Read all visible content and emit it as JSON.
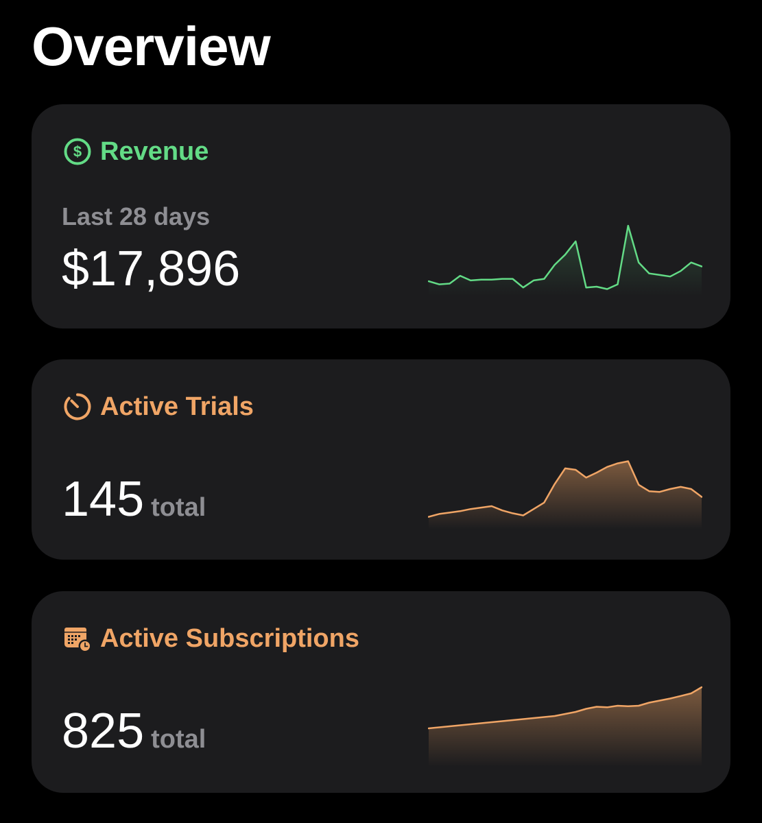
{
  "page": {
    "title": "Overview"
  },
  "cards": {
    "revenue": {
      "title": "Revenue",
      "icon": "dollar-circle-icon",
      "accent": "#63db86",
      "period_label": "Last 28 days",
      "value": "$17,896",
      "sparkline": [
        21,
        17,
        18,
        28,
        22,
        23,
        23,
        24,
        24,
        13,
        22,
        24,
        42,
        55,
        72,
        13,
        14,
        11,
        17,
        92,
        45,
        31,
        29,
        27,
        34,
        45,
        40
      ]
    },
    "active_trials": {
      "title": "Active Trials",
      "icon": "stopwatch-icon",
      "accent": "#f0a566",
      "value": "145",
      "value_unit": "total",
      "sparkline": [
        10,
        14,
        16,
        18,
        21,
        23,
        25,
        19,
        15,
        12,
        21,
        30,
        56,
        78,
        76,
        65,
        72,
        80,
        85,
        88,
        55,
        46,
        45,
        49,
        52,
        49,
        38
      ]
    },
    "active_subscriptions": {
      "title": "Active Subscriptions",
      "icon": "calendar-clock-icon",
      "accent": "#f0a566",
      "value": "825",
      "value_unit": "total",
      "sparkline": [
        20,
        22,
        24,
        26,
        28,
        30,
        32,
        34,
        36,
        38,
        40,
        42,
        44,
        48,
        52,
        58,
        62,
        61,
        64,
        63,
        64,
        70,
        74,
        78,
        83,
        88,
        100
      ]
    }
  }
}
